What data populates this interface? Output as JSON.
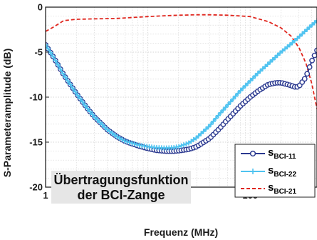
{
  "chart_data": {
    "type": "line",
    "xlabel": "Frequenz (MHz)",
    "ylabel": "S-Parameteramplitude (dB)",
    "xscale": "log",
    "xlim": [
      1,
      450
    ],
    "ylim": [
      -20,
      0
    ],
    "xticks": [
      1,
      10,
      100
    ],
    "xtick_labels": [
      "1",
      "10",
      "100"
    ],
    "yticks": [
      0,
      -5,
      -10,
      -15,
      -20
    ],
    "ytick_labels": [
      "0",
      "-5",
      "-10",
      "-15",
      "-20"
    ],
    "grid": true,
    "legend_position": "lower-right",
    "annotation_lines": [
      "Übertragungsfunktion",
      "der BCI-Zange"
    ],
    "series": [
      {
        "name_main": "s",
        "name_sub": "BCI-11",
        "color": "#2b3990",
        "style": "solid-circle-markers",
        "x": [
          1,
          1.2,
          1.5,
          2,
          2.5,
          3,
          4,
          5,
          6,
          8,
          10,
          12,
          15,
          18,
          20,
          25,
          30,
          40,
          50,
          60,
          80,
          100,
          120,
          150,
          180,
          200,
          250,
          280,
          300,
          350,
          400,
          450
        ],
        "y": [
          -4.2,
          -5.6,
          -7.5,
          -9.6,
          -11.1,
          -12.2,
          -13.6,
          -14.4,
          -14.9,
          -15.4,
          -15.7,
          -15.9,
          -16.0,
          -16.0,
          -15.95,
          -15.8,
          -15.5,
          -14.6,
          -13.5,
          -12.5,
          -11.0,
          -10.0,
          -9.3,
          -8.6,
          -8.4,
          -8.4,
          -8.7,
          -8.9,
          -8.8,
          -7.8,
          -6.0,
          -4.8
        ]
      },
      {
        "name_main": "s",
        "name_sub": "BCI-22",
        "color": "#4fc3f0",
        "style": "solid-plus-markers",
        "x": [
          1,
          1.2,
          1.5,
          2,
          2.5,
          3,
          4,
          5,
          6,
          8,
          10,
          12,
          15,
          18,
          20,
          25,
          30,
          40,
          50,
          60,
          80,
          100,
          120,
          150,
          200,
          250,
          300,
          350,
          400,
          450
        ],
        "y": [
          -4.2,
          -5.6,
          -7.5,
          -9.6,
          -11.1,
          -12.2,
          -13.6,
          -14.4,
          -14.9,
          -15.3,
          -15.5,
          -15.6,
          -15.65,
          -15.6,
          -15.5,
          -15.1,
          -14.5,
          -13.2,
          -11.9,
          -10.9,
          -9.3,
          -8.2,
          -7.3,
          -6.3,
          -5.0,
          -4.1,
          -3.3,
          -2.6,
          -2.0,
          -1.5
        ]
      },
      {
        "name_main": "s",
        "name_sub": "BCI-21",
        "color": "#e0261e",
        "style": "dashed",
        "x": [
          1,
          1.2,
          1.5,
          2,
          3,
          5,
          10,
          15,
          20,
          30,
          40,
          60,
          100,
          150,
          200,
          250,
          300,
          350,
          400,
          450
        ],
        "y": [
          -2.7,
          -2.2,
          -1.5,
          -1.35,
          -1.3,
          -1.25,
          -1.05,
          -0.95,
          -0.9,
          -0.85,
          -0.85,
          -0.9,
          -1.05,
          -1.6,
          -2.3,
          -3.2,
          -4.5,
          -6.2,
          -8.5,
          -11.3
        ]
      }
    ]
  }
}
